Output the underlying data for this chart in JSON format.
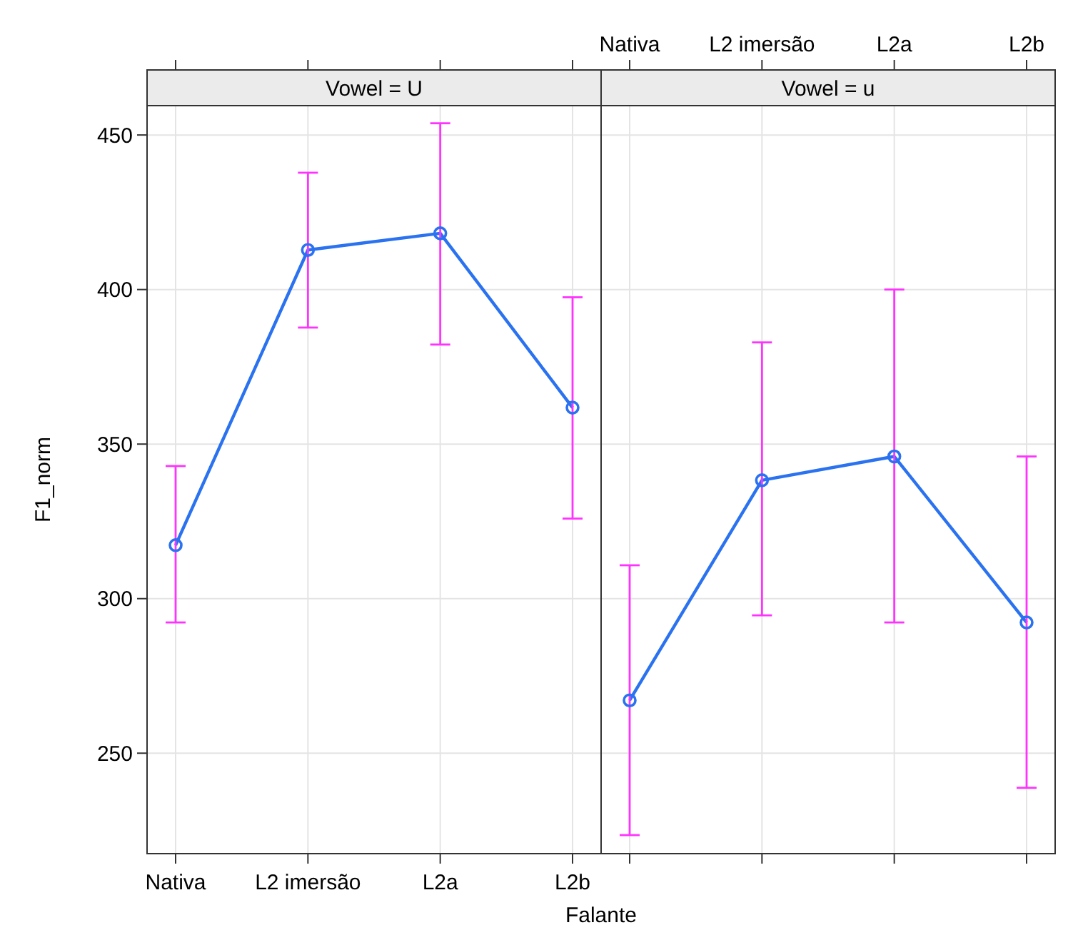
{
  "chart_data": [
    {
      "type": "line",
      "title": "Vowel = U",
      "xlabel": "Falante",
      "ylabel": "F1_norm",
      "categories": [
        "Nativa",
        "L2 imersão",
        "L2a",
        "L2b"
      ],
      "series": [
        {
          "color": "#2a72f0",
          "values": [
            317.3,
            412.8,
            418.2,
            361.8
          ],
          "errors": [
            [
              292.3,
              342.9
            ],
            [
              387.7,
              437.8
            ],
            [
              382.2,
              453.8
            ],
            [
              325.9,
              397.5
            ]
          ]
        }
      ],
      "ylim": [
        217.5,
        459.5
      ],
      "yticks": [
        250,
        300,
        350,
        400,
        450
      ],
      "grid": true,
      "marker": "circle"
    },
    {
      "type": "line",
      "title": "Vowel = u",
      "categories": [
        "Nativa",
        "L2 imersão",
        "L2a",
        "L2b"
      ],
      "series": [
        {
          "color": "#2a72f0",
          "values": [
            267.1,
            338.3,
            346,
            292.3
          ],
          "errors": [
            [
              223.5,
              310.8
            ],
            [
              294.6,
              382.9
            ],
            [
              292.3,
              400
            ],
            [
              238.8,
              346
            ]
          ]
        }
      ],
      "ylim": [
        217.5,
        459.5
      ],
      "yticks": [
        250,
        300,
        350,
        400,
        450
      ],
      "grid": true,
      "marker": "circle",
      "tick_labels": "x"
    }
  ]
}
